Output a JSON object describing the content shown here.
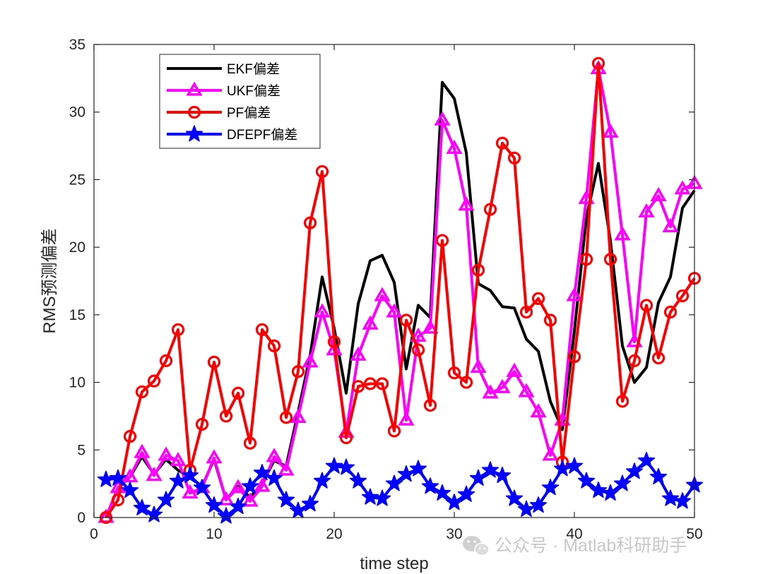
{
  "chart_data": {
    "type": "line",
    "title": "",
    "xlabel": "time step",
    "ylabel": "RMS预测偏差",
    "xlim": [
      0,
      50
    ],
    "ylim": [
      0,
      35
    ],
    "xticks": [
      "0",
      "10",
      "20",
      "30",
      "40",
      "50"
    ],
    "yticks": [
      "0",
      "5",
      "10",
      "15",
      "20",
      "25",
      "30",
      "35"
    ],
    "grid": false,
    "legend_position": "top-left",
    "x": [
      1,
      2,
      3,
      4,
      5,
      6,
      7,
      8,
      9,
      10,
      11,
      12,
      13,
      14,
      15,
      16,
      17,
      18,
      19,
      20,
      21,
      22,
      23,
      24,
      25,
      26,
      27,
      28,
      29,
      30,
      31,
      32,
      33,
      34,
      35,
      36,
      37,
      38,
      39,
      40,
      41,
      42,
      43,
      44,
      45,
      46,
      47,
      48,
      49,
      50
    ],
    "series": [
      {
        "name": "EKF偏差",
        "color": "#000000",
        "marker": "none",
        "values": [
          0.0,
          2.2,
          3.0,
          4.5,
          3.2,
          4.3,
          3.5,
          3.0,
          2.3,
          4.3,
          1.3,
          2.3,
          1.5,
          2.5,
          4.2,
          3.8,
          7.8,
          12.0,
          17.8,
          14.0,
          9.2,
          15.8,
          19.0,
          19.4,
          17.4,
          11.0,
          15.7,
          14.8,
          32.2,
          31.0,
          27.0,
          17.3,
          16.8,
          15.6,
          15.5,
          13.2,
          12.3,
          8.6,
          6.5,
          13.8,
          22.2,
          26.2,
          20.5,
          12.7,
          10.0,
          11.1,
          15.9,
          17.8,
          22.9,
          24.2
        ]
      },
      {
        "name": "UKF偏差",
        "color": "#ff00ff",
        "marker": "triangle",
        "values": [
          0.0,
          2.2,
          3.0,
          4.8,
          3.1,
          4.6,
          4.2,
          1.8,
          2.2,
          4.4,
          1.3,
          2.2,
          1.2,
          2.3,
          4.5,
          3.5,
          7.4,
          11.5,
          15.2,
          12.4,
          6.3,
          12.0,
          14.3,
          16.4,
          15.2,
          7.2,
          13.4,
          14.0,
          29.4,
          27.3,
          23.1,
          11.1,
          9.2,
          9.6,
          10.8,
          9.3,
          7.8,
          4.6,
          7.2,
          16.4,
          23.6,
          33.2,
          28.5,
          20.9,
          13.0,
          22.6,
          23.8,
          21.5,
          24.3,
          24.7
        ]
      },
      {
        "name": "PF偏差",
        "color": "#ff0000",
        "marker": "circle",
        "values": [
          0.0,
          1.3,
          6.0,
          9.3,
          10.1,
          11.6,
          13.9,
          3.5,
          6.9,
          11.5,
          7.5,
          9.2,
          5.5,
          13.9,
          12.7,
          7.4,
          10.8,
          21.8,
          25.6,
          13.0,
          5.9,
          9.7,
          9.9,
          9.9,
          6.4,
          14.6,
          12.4,
          8.3,
          20.5,
          10.7,
          10.0,
          18.3,
          22.8,
          27.7,
          26.6,
          15.2,
          16.2,
          14.6,
          4.1,
          11.9,
          19.1,
          33.6,
          19.1,
          8.6,
          11.6,
          15.7,
          11.8,
          15.2,
          16.4,
          17.7
        ]
      },
      {
        "name": "DFEPF偏差",
        "color": "#0000ff",
        "marker": "star",
        "values": [
          2.8,
          2.9,
          2.0,
          0.7,
          0.2,
          1.3,
          2.7,
          3.1,
          2.2,
          0.9,
          0.1,
          0.8,
          2.3,
          3.3,
          2.9,
          1.3,
          0.5,
          1.0,
          2.7,
          3.8,
          3.7,
          2.7,
          1.5,
          1.4,
          2.5,
          3.2,
          3.6,
          2.3,
          1.8,
          1.1,
          1.7,
          2.9,
          3.5,
          3.1,
          1.4,
          0.6,
          0.9,
          2.2,
          3.6,
          3.8,
          2.7,
          2.0,
          1.8,
          2.5,
          3.4,
          4.2,
          3.0,
          1.4,
          1.2,
          2.4
        ]
      }
    ]
  },
  "watermark": {
    "text": "公众号 · Matlab科研助手",
    "icon": "wechat-icon"
  }
}
